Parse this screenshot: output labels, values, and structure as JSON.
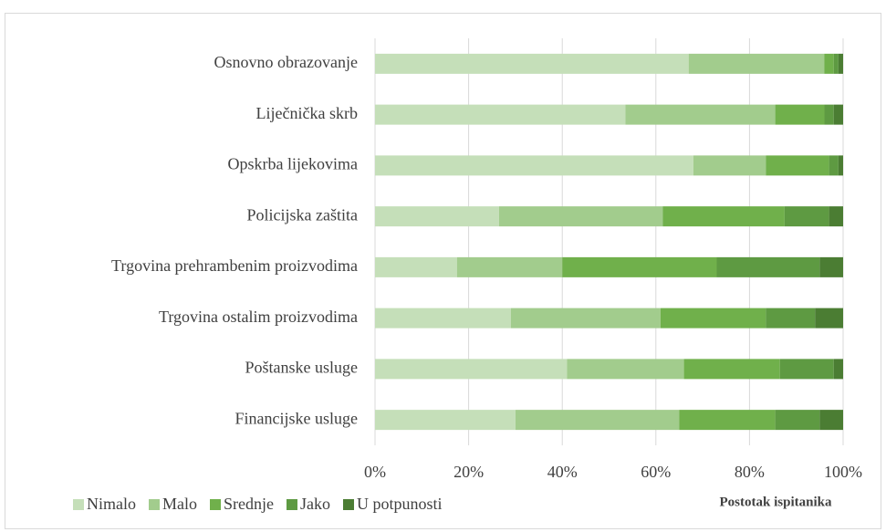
{
  "chart_data": {
    "type": "stacked_barh",
    "x_label": "Postotak ispitanika",
    "categories": [
      "Osnovno obrazovanje",
      "Liječnička skrb",
      "Opskrba lijekovima",
      "Policijska zaštita",
      "Trgovina prehrambenim proizvodima",
      "Trgovina ostalim proizvodima",
      "Poštanske usluge",
      "Financijske usluge"
    ],
    "series": [
      {
        "name": "Nimalo",
        "color": "#c5dfb9",
        "values": [
          67,
          53.5,
          68,
          26.5,
          17.5,
          29,
          41,
          30
        ]
      },
      {
        "name": "Malo",
        "color": "#a2cc8d",
        "values": [
          29,
          32,
          15.5,
          35,
          22.5,
          32,
          25,
          35
        ]
      },
      {
        "name": "Srednje",
        "color": "#70b04b",
        "values": [
          2,
          10.5,
          13.5,
          26,
          33,
          22.5,
          20.5,
          20.5
        ]
      },
      {
        "name": "Jako",
        "color": "#5e9a42",
        "values": [
          1,
          2,
          2,
          9.5,
          22,
          10.5,
          11.5,
          9.5
        ]
      },
      {
        "name": "U potpunosti",
        "color": "#4b7d33",
        "values": [
          1,
          2,
          1,
          3,
          5,
          6,
          2,
          5
        ]
      }
    ],
    "xlim": [
      0,
      100
    ],
    "xticks": [
      {
        "value": 0,
        "label": "0%"
      },
      {
        "value": 20,
        "label": "20%"
      },
      {
        "value": 40,
        "label": "40%"
      },
      {
        "value": 60,
        "label": "60%"
      },
      {
        "value": 80,
        "label": "80%"
      },
      {
        "value": 100,
        "label": "100%"
      }
    ],
    "grid": true,
    "legend": "bottom"
  }
}
